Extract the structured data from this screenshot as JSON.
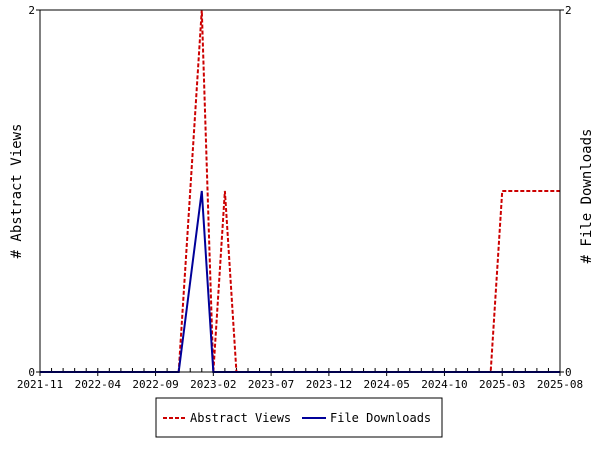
{
  "chart_data": {
    "type": "line",
    "xlabel": "",
    "ylabel_left": "# Abstract Views",
    "ylabel_right": "# File Downloads",
    "x_ticks": [
      "2021-11",
      "2022-04",
      "2022-09",
      "2023-02",
      "2023-07",
      "2023-12",
      "2024-05",
      "2024-10",
      "2025-03",
      "2025-08"
    ],
    "xlim": [
      "2021-11",
      "2025-08"
    ],
    "ylim_left": [
      0,
      2
    ],
    "ylim_right": [
      0,
      2
    ],
    "y_ticks_left": [
      "0",
      "2"
    ],
    "y_ticks_right": [
      "0",
      "2"
    ],
    "grid": false,
    "legend_position": "bottom",
    "series": [
      {
        "name": "Abstract Views",
        "axis": "left",
        "color": "#cc0000",
        "dash": "dashed",
        "points": [
          [
            "2021-11",
            0
          ],
          [
            "2022-11",
            0
          ],
          [
            "2022-12",
            1
          ],
          [
            "2023-01",
            2
          ],
          [
            "2023-02",
            0
          ],
          [
            "2023-03",
            1
          ],
          [
            "2023-04",
            0
          ],
          [
            "2025-02",
            0
          ],
          [
            "2025-03",
            1
          ],
          [
            "2025-08",
            1
          ]
        ]
      },
      {
        "name": "File Downloads",
        "axis": "right",
        "color": "#000099",
        "dash": "solid",
        "points": [
          [
            "2021-11",
            0
          ],
          [
            "2022-11",
            0
          ],
          [
            "2023-01",
            1
          ],
          [
            "2023-02",
            0
          ],
          [
            "2025-08",
            0
          ]
        ]
      }
    ]
  }
}
